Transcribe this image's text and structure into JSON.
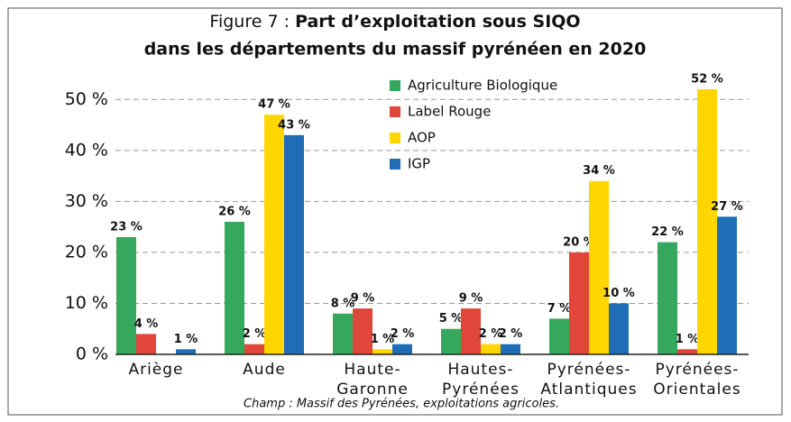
{
  "chart_data": {
    "type": "bar",
    "title": "Figure 7 :",
    "title_bold": [
      "Part d’exploitation sous SIQO",
      "dans les départements du massif pyrénéen en 2020"
    ],
    "categories": [
      [
        "Ariège"
      ],
      [
        "Aude"
      ],
      [
        "Haute-",
        "Garonne"
      ],
      [
        "Hautes-",
        "Pyrénées"
      ],
      [
        "Pyrénées-",
        "Atlantiques"
      ],
      [
        "Pyrénées-",
        "Orientales"
      ]
    ],
    "series": [
      {
        "name": "Agriculture Biologique",
        "color": "#36a85e",
        "values": [
          23,
          26,
          8,
          5,
          7,
          22
        ],
        "value_labels": [
          "23 %",
          "26 %",
          "8 %",
          "5 %",
          "7 %",
          "22 %"
        ]
      },
      {
        "name": "Label Rouge",
        "color": "#e0463a",
        "values": [
          4,
          2,
          9,
          9,
          20,
          1
        ],
        "value_labels": [
          "4 %",
          "2 %",
          "9 %",
          "9 %",
          "20 %",
          "1 %"
        ]
      },
      {
        "name": "AOP",
        "color": "#ffd600",
        "values": [
          null,
          47,
          1,
          2,
          34,
          52
        ],
        "value_labels": [
          null,
          "47 %",
          "1 %",
          "2 %",
          "34 %",
          "52 %"
        ]
      },
      {
        "name": "IGP",
        "color": "#1f6db4",
        "values": [
          1,
          43,
          2,
          2,
          10,
          27
        ],
        "value_labels": [
          "1 %",
          "43 %",
          "2 %",
          "2 %",
          "10 %",
          "27 %"
        ]
      }
    ],
    "ylim": [
      0,
      55
    ],
    "yticks": [
      {
        "value": 0,
        "label": "0 %"
      },
      {
        "value": 10,
        "label": "10 %"
      },
      {
        "value": 20,
        "label": "20 %"
      },
      {
        "value": 30,
        "label": "30 %"
      },
      {
        "value": 40,
        "label": "40 %"
      },
      {
        "value": 50,
        "label": "50 %"
      }
    ],
    "grid": true,
    "note": "Champ : Massif des Pyrénées, exploitations agricoles."
  }
}
